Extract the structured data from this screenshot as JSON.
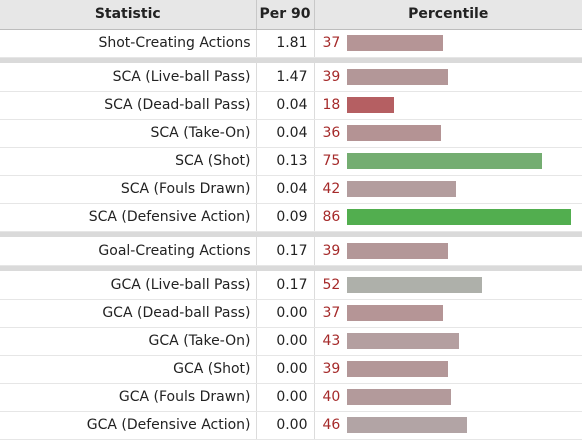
{
  "header": {
    "statistic": "Statistic",
    "per90": "Per 90",
    "percentile": "Percentile"
  },
  "bar_max_pct": 100,
  "rows": [
    {
      "stat": "Shot-Creating Actions",
      "per90": "1.81",
      "pct": 37,
      "color": "#b59596"
    },
    {
      "sep": true
    },
    {
      "stat": "SCA (Live-ball Pass)",
      "per90": "1.47",
      "pct": 39,
      "color": "#b39798"
    },
    {
      "stat": "SCA (Dead-ball Pass)",
      "per90": "0.04",
      "pct": 18,
      "color": "#b55f62"
    },
    {
      "stat": "SCA (Take-On)",
      "per90": "0.04",
      "pct": 36,
      "color": "#b49394"
    },
    {
      "stat": "SCA (Shot)",
      "per90": "0.13",
      "pct": 75,
      "color": "#74ad71"
    },
    {
      "stat": "SCA (Fouls Drawn)",
      "per90": "0.04",
      "pct": 42,
      "color": "#b39d9e"
    },
    {
      "stat": "SCA (Defensive Action)",
      "per90": "0.09",
      "pct": 86,
      "color": "#52ae4f"
    },
    {
      "sep": true
    },
    {
      "stat": "Goal-Creating Actions",
      "per90": "0.17",
      "pct": 39,
      "color": "#b39798"
    },
    {
      "sep": true
    },
    {
      "stat": "GCA (Live-ball Pass)",
      "per90": "0.17",
      "pct": 52,
      "color": "#aeb0aa"
    },
    {
      "stat": "GCA (Dead-ball Pass)",
      "per90": "0.00",
      "pct": 37,
      "color": "#b59596"
    },
    {
      "stat": "GCA (Take-On)",
      "per90": "0.00",
      "pct": 43,
      "color": "#b49fa0"
    },
    {
      "stat": "GCA (Shot)",
      "per90": "0.00",
      "pct": 39,
      "color": "#b39798"
    },
    {
      "stat": "GCA (Fouls Drawn)",
      "per90": "0.00",
      "pct": 40,
      "color": "#b39a9b"
    },
    {
      "stat": "GCA (Defensive Action)",
      "per90": "0.00",
      "pct": 46,
      "color": "#b2a4a5"
    }
  ]
}
